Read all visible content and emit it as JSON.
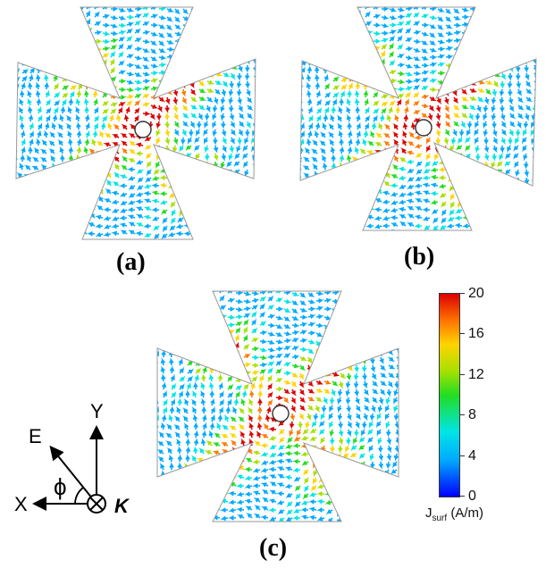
{
  "panels": [
    {
      "label": "(a)"
    },
    {
      "label": "(b)"
    },
    {
      "label": "(c)"
    }
  ],
  "colorbar": {
    "ticks": [
      "20",
      "16",
      "12",
      "8",
      "4",
      "0"
    ],
    "tick_values": [
      20,
      16,
      12,
      8,
      4,
      0
    ],
    "range": [
      0,
      20
    ],
    "title_main": "J",
    "title_sub": "surf",
    "title_unit": " (A/m)",
    "colors": [
      "#0000ff",
      "#00aaff",
      "#00e5e5",
      "#22dd22",
      "#a8e000",
      "#ffd400",
      "#ff7a00",
      "#dd0000"
    ]
  },
  "axes": {
    "y_label": "Y",
    "x_label": "X",
    "e_label": "E",
    "phi_label": "ϕ",
    "k_label": "K"
  }
}
